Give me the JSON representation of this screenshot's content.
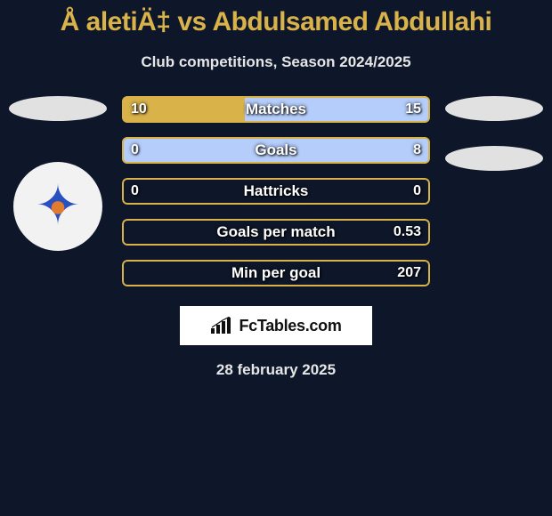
{
  "title": "Å aletiÄ‡ vs Abdulsamed Abdullahi",
  "subtitle": "Club competitions, Season 2024/2025",
  "date": "28 february 2025",
  "colors": {
    "left_fill": "#d9b24a",
    "right_fill": "#b5cdfb",
    "border": "#d9b24a",
    "background": "#0e172a",
    "pill": "#e1e1e1",
    "logo_bg": "#f2f2f2",
    "logo_accent_orange": "#e07b2f",
    "logo_accent_blue": "#2a4fbf"
  },
  "brand": {
    "text": "FcTables.com"
  },
  "logo_icon": "✦",
  "stats": [
    {
      "label": "Matches",
      "left_display": "10",
      "right_display": "15",
      "left_pct": 40,
      "right_pct": 60
    },
    {
      "label": "Goals",
      "left_display": "0",
      "right_display": "8",
      "left_pct": 0,
      "right_pct": 100
    },
    {
      "label": "Hattricks",
      "left_display": "0",
      "right_display": "0",
      "left_pct": 0,
      "right_pct": 0
    },
    {
      "label": "Goals per match",
      "left_display": "",
      "right_display": "0.53",
      "left_pct": 0,
      "right_pct": 0
    },
    {
      "label": "Min per goal",
      "left_display": "",
      "right_display": "207",
      "left_pct": 0,
      "right_pct": 0
    }
  ]
}
